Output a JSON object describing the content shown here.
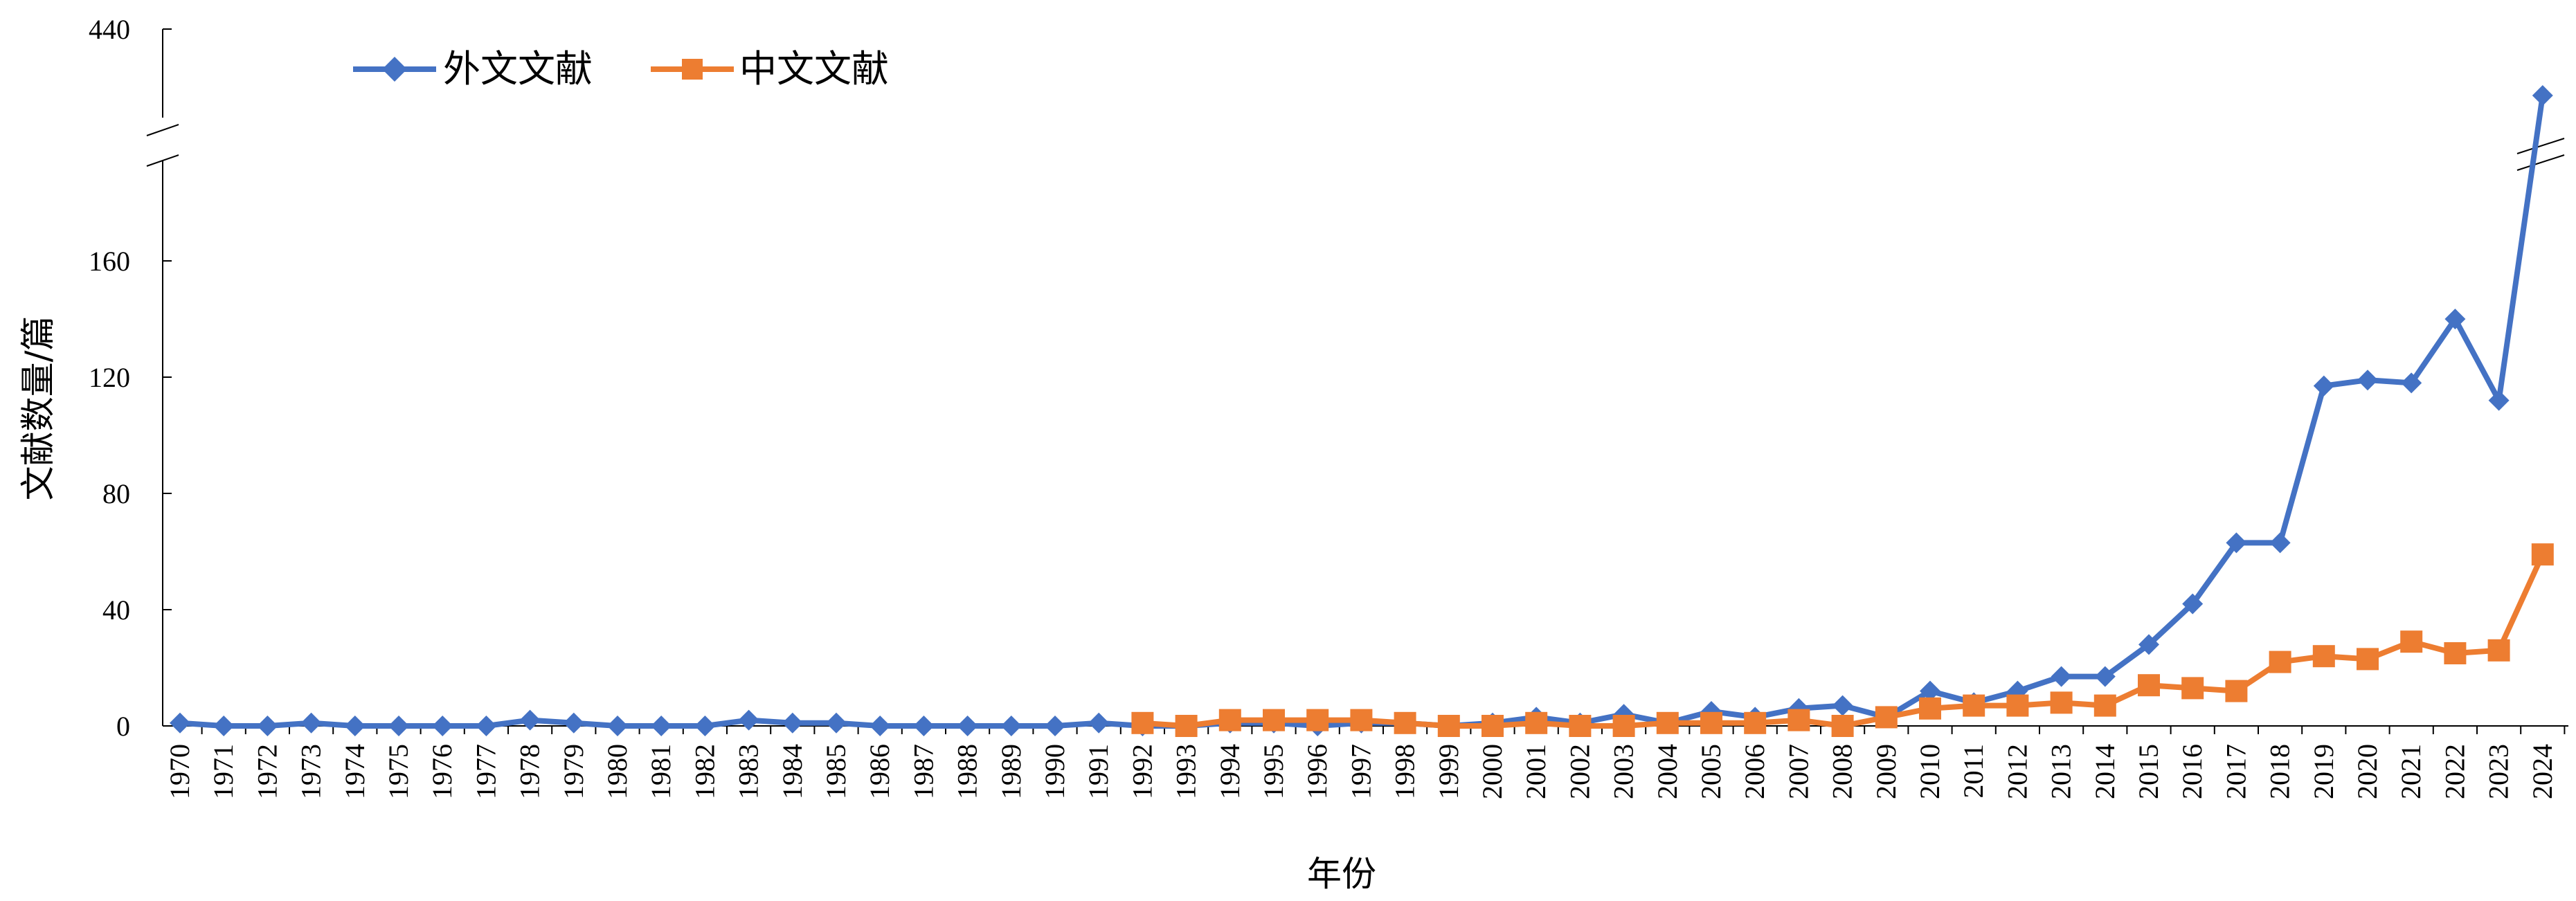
{
  "chart_data": {
    "type": "line",
    "xlabel": "年份",
    "ylabel": "文献数量/篇",
    "y_ticks": [
      "0",
      "40",
      "80",
      "120",
      "160",
      "440"
    ],
    "ylim": [
      0,
      440
    ],
    "y_axis_break": [
      180,
      420
    ],
    "grid": false,
    "legend_position": "top-left",
    "x": [
      "1970",
      "1971",
      "1972",
      "1973",
      "1974",
      "1975",
      "1976",
      "1977",
      "1978",
      "1979",
      "1980",
      "1981",
      "1982",
      "1983",
      "1984",
      "1985",
      "1986",
      "1987",
      "1988",
      "1989",
      "1990",
      "1991",
      "1992",
      "1993",
      "1994",
      "1995",
      "1996",
      "1997",
      "1998",
      "1999",
      "2000",
      "2001",
      "2002",
      "2003",
      "2004",
      "2005",
      "2006",
      "2007",
      "2008",
      "2009",
      "2010",
      "2011",
      "2012",
      "2013",
      "2014",
      "2015",
      "2016",
      "2017",
      "2018",
      "2019",
      "2020",
      "2021",
      "2022",
      "2023",
      "2024"
    ],
    "series": [
      {
        "name": "外文文献",
        "color": "#4472C4",
        "marker": "diamond",
        "values": [
          1,
          0,
          0,
          1,
          0,
          0,
          0,
          0,
          2,
          1,
          0,
          0,
          0,
          2,
          1,
          1,
          0,
          0,
          0,
          0,
          0,
          1,
          0,
          0,
          1,
          1,
          0,
          1,
          1,
          0,
          1,
          3,
          1,
          4,
          1,
          5,
          3,
          6,
          7,
          3,
          12,
          8,
          12,
          17,
          17,
          28,
          42,
          63,
          63,
          117,
          119,
          118,
          140,
          112,
          425
        ]
      },
      {
        "name": "中文文献",
        "color": "#ED7D31",
        "marker": "square",
        "values": [
          null,
          null,
          null,
          null,
          null,
          null,
          null,
          null,
          null,
          null,
          null,
          null,
          null,
          null,
          null,
          null,
          null,
          null,
          null,
          null,
          null,
          null,
          1,
          0,
          2,
          2,
          2,
          2,
          1,
          0,
          0,
          1,
          0,
          0,
          1,
          1,
          1,
          2,
          0,
          3,
          6,
          7,
          7,
          8,
          7,
          14,
          13,
          12,
          22,
          24,
          23,
          29,
          25,
          26,
          59
        ]
      }
    ]
  }
}
